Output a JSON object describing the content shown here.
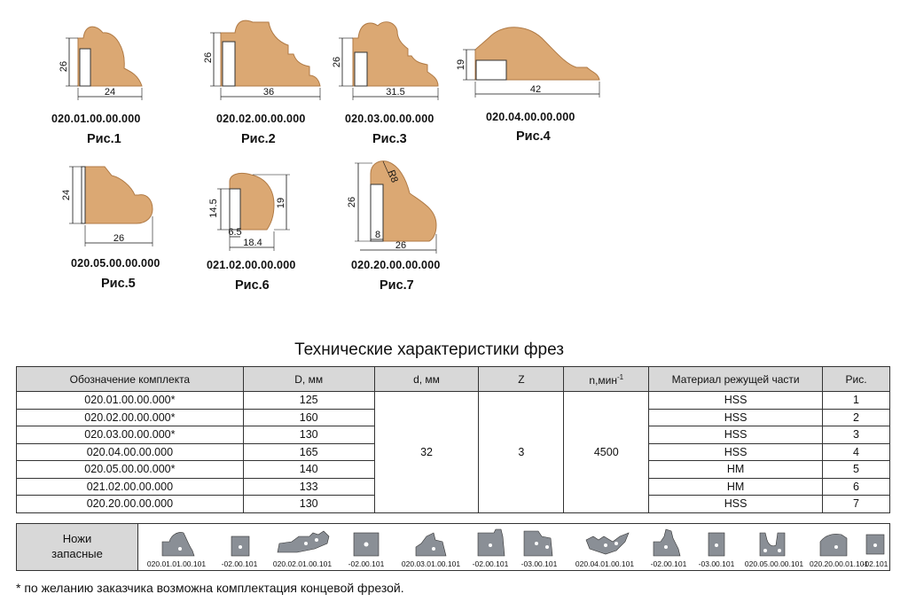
{
  "figures": [
    {
      "id": "fig1",
      "code": "020.01.00.00.000",
      "label": "Рис.1",
      "dims": {
        "h": "26",
        "w": "24"
      }
    },
    {
      "id": "fig2",
      "code": "020.02.00.00.000",
      "label": "Рис.2",
      "dims": {
        "h": "26",
        "w": "36"
      }
    },
    {
      "id": "fig3",
      "code": "020.03.00.00.000",
      "label": "Рис.3",
      "dims": {
        "h": "26",
        "w": "31.5"
      }
    },
    {
      "id": "fig4",
      "code": "020.04.00.00.000",
      "label": "Рис.4",
      "dims": {
        "h": "19",
        "w": "42"
      }
    },
    {
      "id": "fig5",
      "code": "020.05.00.00.000",
      "label": "Рис.5",
      "dims": {
        "h": "24",
        "w": "26"
      }
    },
    {
      "id": "fig6",
      "code": "021.02.00.00.000",
      "label": "Рис.6",
      "dims": {
        "h1": "14.5",
        "h2": "19",
        "w1": "6.5",
        "w2": "18.4"
      }
    },
    {
      "id": "fig7",
      "code": "020.20.00.00.000",
      "label": "Рис.7",
      "dims": {
        "h": "26",
        "r": "R8",
        "w1": "8",
        "w2": "26"
      }
    }
  ],
  "table_title": "Технические характеристики фрез",
  "table": {
    "headers": {
      "set": "Обозначение комплекта",
      "D": "D, мм",
      "d": "d, мм",
      "z": "Z",
      "n": "n,мин",
      "n_sup": "-1",
      "material": "Материал режущей части",
      "fig": "Рис."
    },
    "rows": [
      {
        "set": "020.01.00.00.000*",
        "D": "125",
        "material": "HSS",
        "fig": "1"
      },
      {
        "set": "020.02.00.00.000*",
        "D": "160",
        "material": "HSS",
        "fig": "2"
      },
      {
        "set": "020.03.00.00.000*",
        "D": "130",
        "material": "HSS",
        "fig": "3"
      },
      {
        "set": "020.04.00.00.000",
        "D": "165",
        "material": "HSS",
        "fig": "4"
      },
      {
        "set": "020.05.00.00.000*",
        "D": "140",
        "material": "HM",
        "fig": "5"
      },
      {
        "set": "021.02.00.00.000",
        "D": "133",
        "material": "HM",
        "fig": "6"
      },
      {
        "set": "020.20.00.00.000",
        "D": "130",
        "material": "HSS",
        "fig": "7"
      }
    ],
    "shared": {
      "d": "32",
      "z": "3",
      "n": "4500"
    }
  },
  "knives": {
    "label_line1": "Ножи",
    "label_line2": "запасные",
    "items": [
      "020.01.01.00.101",
      "-02.00.101",
      "020.02.01.00.101",
      "-02.00.101",
      "020.03.01.00.101",
      "-02.00.101",
      "-03.00.101",
      "020.04.01.00.101",
      "-02.00.101",
      "-03.00.101",
      "020.05.00.00.101",
      "020.20.00.01.101",
      "-02.101"
    ]
  },
  "footnote": "* по желанию заказчика возможна комплектация концевой фрезой.",
  "colors": {
    "wood": "#dba873",
    "wood_stroke": "#b07a45",
    "knife": "#8a8f96",
    "header_bg": "#d8d8d8"
  }
}
